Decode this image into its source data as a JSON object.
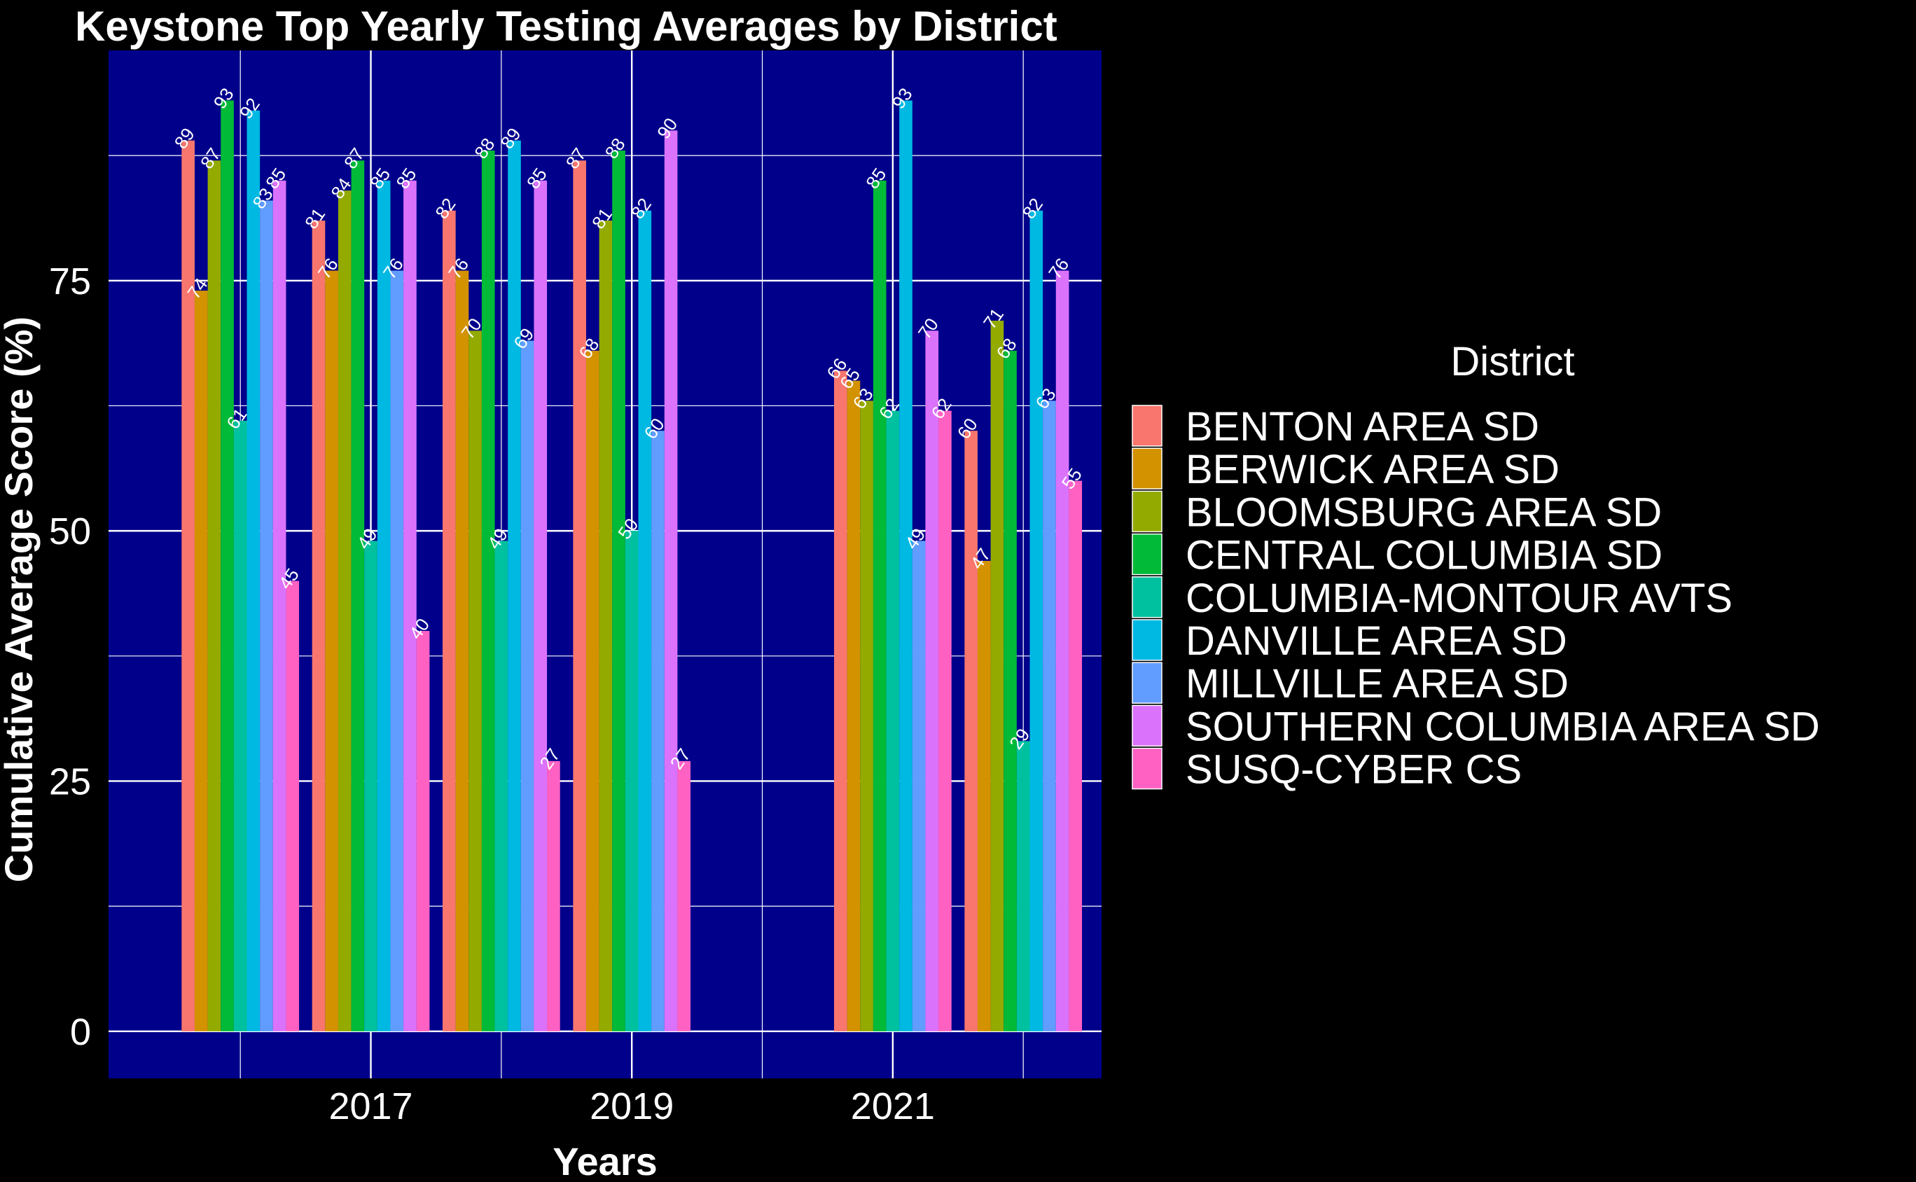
{
  "chart_data": {
    "type": "bar",
    "title": "Keystone Top Yearly Testing Averages by District",
    "xlabel": "Years",
    "ylabel": "Cumulative Average Score (%)",
    "x": [
      2016,
      2017,
      2018,
      2019,
      2021,
      2022
    ],
    "xticks": [
      2017,
      2019,
      2021
    ],
    "yticks": [
      0,
      25,
      50,
      75
    ],
    "ylim": [
      -4.7,
      98
    ],
    "xlim": [
      2014.99,
      2022.6
    ],
    "grid": true,
    "legend": {
      "title": "District",
      "placement": "right"
    },
    "colors": {
      "panel_background": "#00008B",
      "page_background": "#000000",
      "grid": "#FFFFFF",
      "text": "#FFFFFF"
    },
    "series": [
      {
        "name": "BENTON AREA SD",
        "color": "#F8766D",
        "values": [
          89,
          81,
          82,
          87,
          66,
          60
        ]
      },
      {
        "name": "BERWICK AREA SD",
        "color": "#D39200",
        "values": [
          74,
          76,
          76,
          68,
          65,
          47
        ]
      },
      {
        "name": "BLOOMSBURG AREA SD",
        "color": "#93AA00",
        "values": [
          87,
          84,
          70,
          81,
          63,
          71
        ]
      },
      {
        "name": "CENTRAL COLUMBIA SD",
        "color": "#00BA38",
        "values": [
          93,
          87,
          88,
          88,
          85,
          68
        ]
      },
      {
        "name": "COLUMBIA-MONTOUR AVTS",
        "color": "#00C19F",
        "values": [
          61,
          49,
          49,
          50,
          62,
          29
        ]
      },
      {
        "name": "DANVILLE AREA SD",
        "color": "#00B9E3",
        "values": [
          92,
          85,
          89,
          82,
          93,
          82
        ]
      },
      {
        "name": "MILLVILLE AREA SD",
        "color": "#619CFF",
        "values": [
          83,
          76,
          69,
          60,
          49,
          63
        ]
      },
      {
        "name": "SOUTHERN COLUMBIA AREA SD",
        "color": "#DB72FB",
        "values": [
          85,
          85,
          85,
          90,
          70,
          76
        ]
      },
      {
        "name": "SUSQ-CYBER CS",
        "color": "#FF61C3",
        "values": [
          45,
          40,
          27,
          27,
          62,
          55
        ]
      }
    ]
  }
}
